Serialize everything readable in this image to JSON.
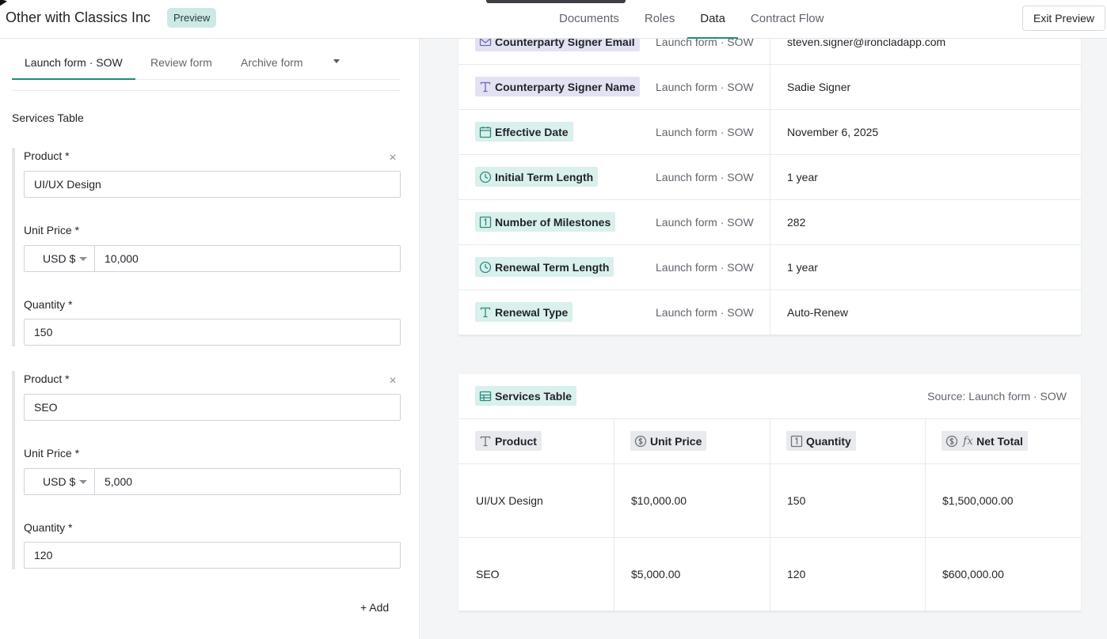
{
  "header": {
    "title": "Other with Classics Inc",
    "badge": "Preview",
    "nav": [
      "Documents",
      "Roles",
      "Data",
      "Contract Flow"
    ],
    "active_nav": "Data",
    "exit_label": "Exit Preview"
  },
  "form": {
    "tabs": [
      "Launch form · SOW",
      "Review form",
      "Archive form"
    ],
    "section_title": "Services Table",
    "items": [
      {
        "product_label": "Product *",
        "product_value": "UI/UX Design",
        "price_label": "Unit Price *",
        "currency": "USD $",
        "price_value": "10,000",
        "quantity_label": "Quantity *",
        "quantity_value": "150",
        "remove_glyph": "×"
      },
      {
        "product_label": "Product *",
        "product_value": "SEO",
        "price_label": "Unit Price *",
        "currency": "USD $",
        "price_value": "5,000",
        "quantity_label": "Quantity *",
        "quantity_value": "120",
        "remove_glyph": "×"
      }
    ],
    "add_label": "+ Add"
  },
  "data_rows": [
    {
      "name": "Counterparty Signer Email",
      "icon": "email-icon",
      "source": "Launch form · SOW",
      "value": "steven.signer@ironcladapp.com"
    },
    {
      "name": "Counterparty Signer Name",
      "icon": "text-icon",
      "source": "Launch form · SOW",
      "value": "Sadie Signer"
    },
    {
      "name": "Effective Date",
      "icon": "calendar-icon",
      "source": "Launch form · SOW",
      "value": "November 6, 2025"
    },
    {
      "name": "Initial Term Length",
      "icon": "clock-icon",
      "source": "Launch form · SOW",
      "value": "1 year"
    },
    {
      "name": "Number of Milestones",
      "icon": "number-icon",
      "source": "Launch form · SOW",
      "value": "282"
    },
    {
      "name": "Renewal Term Length",
      "icon": "clock-icon",
      "source": "Launch form · SOW",
      "value": "1 year"
    },
    {
      "name": "Renewal Type",
      "icon": "text-icon",
      "source": "Launch form · SOW",
      "value": "Auto-Renew"
    }
  ],
  "services_table": {
    "title": "Services Table",
    "source": "Source: Launch form · SOW",
    "columns": [
      "Product",
      "Unit Price",
      "Quantity",
      "Net Total"
    ],
    "column_icons": [
      "text-icon",
      "currency-icon",
      "number-icon",
      "formula-icon"
    ],
    "formula_glyph": "fx",
    "rows": [
      [
        "UI/UX Design",
        "$10,000.00",
        "150",
        "$1,500,000.00"
      ],
      [
        "SEO",
        "$5,000.00",
        "120",
        "$600,000.00"
      ]
    ]
  },
  "colors": {
    "accent": "#1e8f77",
    "tag_teal": "#d9f0ec",
    "tag_purple": "#e3e2f3",
    "icon_teal": "#2a8c7d",
    "icon_purple": "#6b67b8"
  }
}
